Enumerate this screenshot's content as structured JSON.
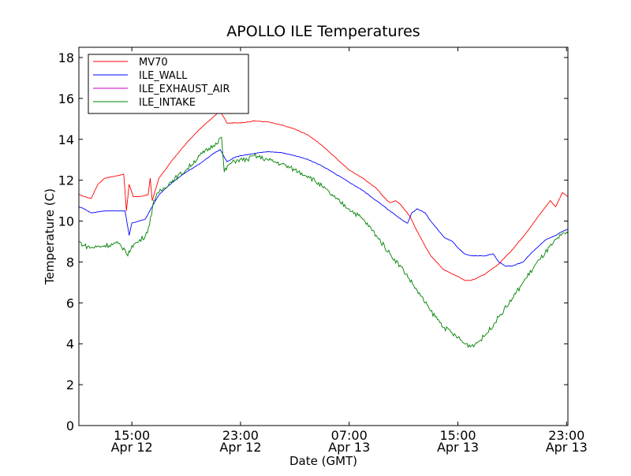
{
  "chart_data": {
    "type": "line",
    "title": "APOLLO ILE Temperatures",
    "xlabel": "Date (GMT)",
    "ylabel": "Temperature (C)",
    "xlim": [
      11.1,
      47.1
    ],
    "ylim": [
      0,
      18.5
    ],
    "grid": false,
    "legend_position": "top-left",
    "yticks": [
      0,
      2,
      4,
      6,
      8,
      10,
      12,
      14,
      16,
      18
    ],
    "xticks": [
      {
        "value": 15,
        "time": "15:00",
        "date": "Apr 12"
      },
      {
        "value": 23,
        "time": "23:00",
        "date": "Apr 12"
      },
      {
        "value": 31,
        "time": "07:00",
        "date": "Apr 13"
      },
      {
        "value": 39,
        "time": "15:00",
        "date": "Apr 13"
      },
      {
        "value": 47,
        "time": "23:00",
        "date": "Apr 13"
      }
    ],
    "series": [
      {
        "name": "MV70",
        "color": "#ff0000",
        "points": [
          [
            11.1,
            11.3
          ],
          [
            11.5,
            11.2
          ],
          [
            12.0,
            11.1
          ],
          [
            12.5,
            11.8
          ],
          [
            13.0,
            12.1
          ],
          [
            13.8,
            12.2
          ],
          [
            14.4,
            12.3
          ],
          [
            14.6,
            10.5
          ],
          [
            14.8,
            11.8
          ],
          [
            15.1,
            11.2
          ],
          [
            15.6,
            11.2
          ],
          [
            16.2,
            11.3
          ],
          [
            16.35,
            12.1
          ],
          [
            16.5,
            11.0
          ],
          [
            17.0,
            12.1
          ],
          [
            18.0,
            13.0
          ],
          [
            19.0,
            13.8
          ],
          [
            20.0,
            14.5
          ],
          [
            21.0,
            15.1
          ],
          [
            21.5,
            15.4
          ],
          [
            22.0,
            14.8
          ],
          [
            23.0,
            14.8
          ],
          [
            24.0,
            14.9
          ],
          [
            25.0,
            14.85
          ],
          [
            26.0,
            14.7
          ],
          [
            27.0,
            14.5
          ],
          [
            28.0,
            14.2
          ],
          [
            29.0,
            13.7
          ],
          [
            30.0,
            13.1
          ],
          [
            31.0,
            12.5
          ],
          [
            32.0,
            12.1
          ],
          [
            33.0,
            11.6
          ],
          [
            33.8,
            11.0
          ],
          [
            34.0,
            10.9
          ],
          [
            34.4,
            11.0
          ],
          [
            34.8,
            10.8
          ],
          [
            35.5,
            10.2
          ],
          [
            36.0,
            9.5
          ],
          [
            37.0,
            8.3
          ],
          [
            38.0,
            7.6
          ],
          [
            39.0,
            7.3
          ],
          [
            39.5,
            7.1
          ],
          [
            40.0,
            7.1
          ],
          [
            41.0,
            7.4
          ],
          [
            42.0,
            7.9
          ],
          [
            43.0,
            8.6
          ],
          [
            44.0,
            9.4
          ],
          [
            45.0,
            10.3
          ],
          [
            45.8,
            11.0
          ],
          [
            46.2,
            10.7
          ],
          [
            46.7,
            11.4
          ],
          [
            47.1,
            11.2
          ]
        ]
      },
      {
        "name": "ILE_WALL",
        "color": "#0000ff",
        "points": [
          [
            11.1,
            10.7
          ],
          [
            11.5,
            10.6
          ],
          [
            12.0,
            10.4
          ],
          [
            13.0,
            10.5
          ],
          [
            14.5,
            10.5
          ],
          [
            14.8,
            9.3
          ],
          [
            15.0,
            9.9
          ],
          [
            15.5,
            10.0
          ],
          [
            16.0,
            10.1
          ],
          [
            16.4,
            10.6
          ],
          [
            17.0,
            11.3
          ],
          [
            18.0,
            11.9
          ],
          [
            19.0,
            12.4
          ],
          [
            20.0,
            12.8
          ],
          [
            21.0,
            13.3
          ],
          [
            21.5,
            13.5
          ],
          [
            22.0,
            12.9
          ],
          [
            22.5,
            13.1
          ],
          [
            23.0,
            13.2
          ],
          [
            24.0,
            13.3
          ],
          [
            25.0,
            13.4
          ],
          [
            26.0,
            13.35
          ],
          [
            27.0,
            13.2
          ],
          [
            28.0,
            13.0
          ],
          [
            29.0,
            12.7
          ],
          [
            30.0,
            12.3
          ],
          [
            31.0,
            11.9
          ],
          [
            32.0,
            11.5
          ],
          [
            33.0,
            11.0
          ],
          [
            34.0,
            10.5
          ],
          [
            35.0,
            10.0
          ],
          [
            35.3,
            9.9
          ],
          [
            35.6,
            10.4
          ],
          [
            36.0,
            10.6
          ],
          [
            36.6,
            10.4
          ],
          [
            37.0,
            10.0
          ],
          [
            37.5,
            9.6
          ],
          [
            38.0,
            9.2
          ],
          [
            38.6,
            9.0
          ],
          [
            39.0,
            8.7
          ],
          [
            39.5,
            8.4
          ],
          [
            40.0,
            8.3
          ],
          [
            41.0,
            8.3
          ],
          [
            41.6,
            8.4
          ],
          [
            42.0,
            8.0
          ],
          [
            42.5,
            7.8
          ],
          [
            43.0,
            7.8
          ],
          [
            43.8,
            8.0
          ],
          [
            44.5,
            8.5
          ],
          [
            45.5,
            9.1
          ],
          [
            46.2,
            9.3
          ],
          [
            46.7,
            9.5
          ],
          [
            47.1,
            9.6
          ]
        ]
      },
      {
        "name": "ILE_EXHAUST_AIR",
        "color": "#bf00bf",
        "points": []
      },
      {
        "name": "ILE_INTAKE",
        "color": "#008000",
        "points": [
          [
            11.1,
            9.0
          ],
          [
            11.5,
            8.8
          ],
          [
            12.0,
            8.7
          ],
          [
            13.0,
            8.8
          ],
          [
            14.0,
            8.9
          ],
          [
            14.5,
            8.6
          ],
          [
            14.7,
            8.3
          ],
          [
            15.0,
            8.8
          ],
          [
            15.5,
            9.0
          ],
          [
            16.0,
            9.3
          ],
          [
            16.3,
            9.8
          ],
          [
            16.6,
            11.0
          ],
          [
            17.0,
            11.4
          ],
          [
            18.0,
            12.0
          ],
          [
            19.0,
            12.5
          ],
          [
            20.0,
            13.2
          ],
          [
            21.0,
            13.7
          ],
          [
            21.6,
            14.1
          ],
          [
            21.8,
            12.4
          ],
          [
            22.2,
            12.8
          ],
          [
            22.8,
            13.0
          ],
          [
            23.5,
            13.0
          ],
          [
            24.0,
            13.2
          ],
          [
            25.0,
            13.0
          ],
          [
            26.0,
            12.8
          ],
          [
            27.0,
            12.5
          ],
          [
            28.0,
            12.2
          ],
          [
            29.0,
            11.7
          ],
          [
            30.0,
            11.1
          ],
          [
            31.0,
            10.6
          ],
          [
            32.0,
            10.1
          ],
          [
            33.0,
            9.3
          ],
          [
            34.0,
            8.4
          ],
          [
            35.0,
            7.6
          ],
          [
            36.0,
            6.6
          ],
          [
            37.0,
            5.6
          ],
          [
            38.0,
            4.8
          ],
          [
            39.0,
            4.3
          ],
          [
            39.5,
            4.0
          ],
          [
            40.0,
            3.9
          ],
          [
            40.5,
            4.1
          ],
          [
            41.0,
            4.4
          ],
          [
            42.0,
            5.3
          ],
          [
            43.0,
            6.2
          ],
          [
            44.0,
            7.2
          ],
          [
            45.0,
            8.1
          ],
          [
            46.0,
            8.9
          ],
          [
            46.6,
            9.3
          ],
          [
            47.1,
            9.4
          ]
        ]
      }
    ]
  }
}
